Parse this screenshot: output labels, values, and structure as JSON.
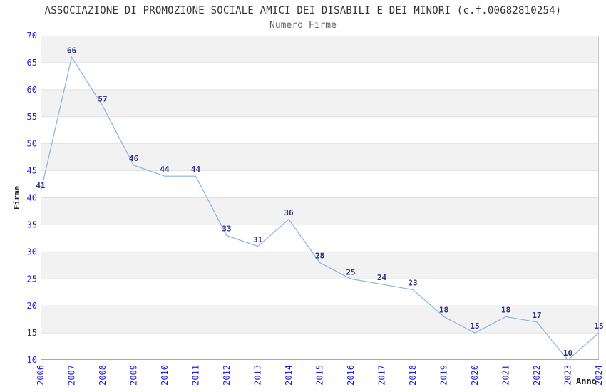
{
  "chart_data": {
    "type": "line",
    "title": "ASSOCIAZIONE DI PROMOZIONE SOCIALE AMICI DEI DISABILI E DEI MINORI (c.f.00682810254)",
    "subtitle": "Numero Firme",
    "xlabel": "Anno",
    "ylabel": "Firme",
    "x": [
      "2006",
      "2007",
      "2008",
      "2009",
      "2010",
      "2011",
      "2012",
      "2013",
      "2014",
      "2015",
      "2016",
      "2017",
      "2018",
      "2019",
      "2020",
      "2021",
      "2022",
      "2023",
      "2024"
    ],
    "series": [
      {
        "name": "Numero Firme",
        "values": [
          41,
          66,
          57,
          46,
          44,
          44,
          33,
          31,
          36,
          28,
          25,
          24,
          23,
          18,
          15,
          18,
          17,
          10,
          15
        ]
      }
    ],
    "ylim": [
      10,
      70
    ],
    "ytick_step": 5,
    "grid": true,
    "bands_alternating": true,
    "legend_position": "none",
    "value_labels_shown": true,
    "colors": {
      "line": "#85b3e6",
      "value_labels": "#2f2f8c",
      "tick_labels": "#2222dd",
      "band": "#f2f2f2",
      "grid": "#e0e0e0",
      "border": "#c8c8c8",
      "axis": "#aaaaaa",
      "title": "#333333",
      "subtitle": "#666666"
    }
  }
}
